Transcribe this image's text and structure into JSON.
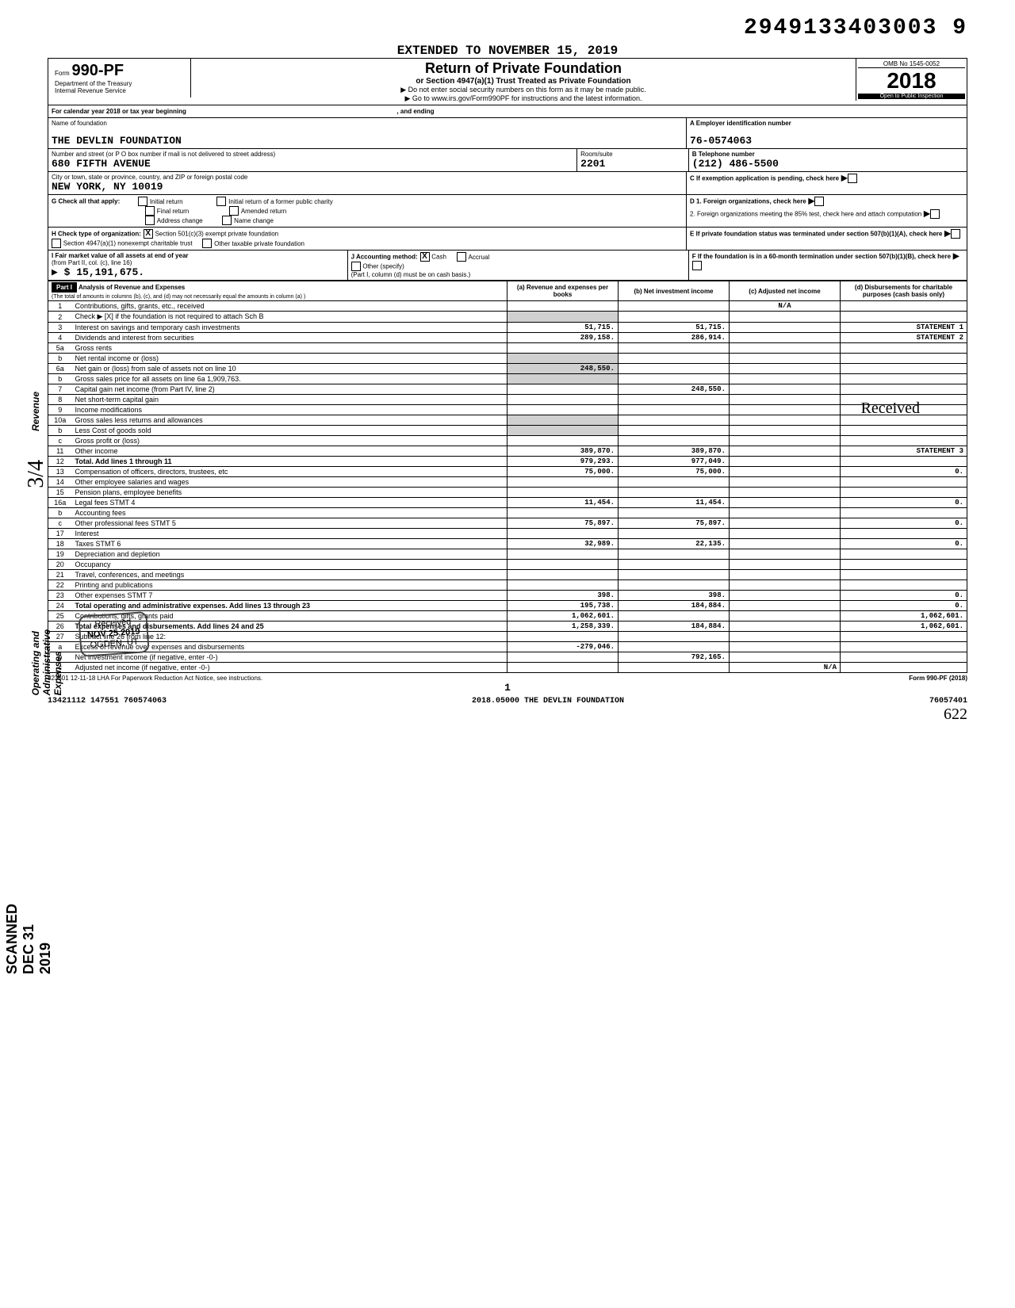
{
  "top_number": "2949133403003 9",
  "extended": "EXTENDED TO NOVEMBER 15, 2019",
  "form": {
    "prefix": "Form",
    "number": "990-PF",
    "dept1": "Department of the Treasury",
    "dept2": "Internal Revenue Service"
  },
  "title": {
    "main": "Return of Private Foundation",
    "sub": "or Section 4947(a)(1) Trust Treated as Private Foundation",
    "note1": "▶ Do not enter social security numbers on this form as it may be made public.",
    "note2": "▶ Go to www.irs.gov/Form990PF for instructions and the latest information."
  },
  "yearbox": {
    "omb": "OMB No  1545-0052",
    "year": "2018",
    "open": "Open to Public Inspection"
  },
  "cal_line": {
    "prefix": "For calendar year 2018 or tax year beginning",
    "mid": ", and ending"
  },
  "header": {
    "name_label": "Name of foundation",
    "name": "THE DEVLIN FOUNDATION",
    "addr_label": "Number and street (or P O  box number if mail is not delivered to street address)",
    "addr": "680 FIFTH AVENUE",
    "room_label": "Room/suite",
    "room": "2201",
    "city_label": "City or town, state or province, country, and ZIP or foreign postal code",
    "city": "NEW YORK, NY   10019",
    "ein_label": "A  Employer identification number",
    "ein": "76-0574063",
    "tel_label": "B  Telephone number",
    "tel": "(212) 486-5500",
    "c_label": "C  If exemption application is pending, check here",
    "g_label": "G   Check all that apply:",
    "g_opts": [
      "Initial return",
      "Final return",
      "Address change",
      "Initial return of a former public charity",
      "Amended return",
      "Name change"
    ],
    "d1": "D  1. Foreign organizations, check here",
    "d2": "2. Foreign organizations meeting the 85% test, check here and attach computation",
    "h_label": "H   Check type of organization:",
    "h1": "Section 501(c)(3) exempt private foundation",
    "h2": "Section 4947(a)(1) nonexempt charitable trust",
    "h3": "Other taxable private foundation",
    "e_label": "E  If private foundation status was terminated under section 507(b)(1)(A), check here",
    "i_label": "I   Fair market value of all assets at end of year",
    "i_sub": "(from Part II, col. (c), line 16)",
    "i_val": "▶ $              15,191,675.",
    "j_label": "J   Accounting method:",
    "j_cash": "Cash",
    "j_accrual": "Accrual",
    "j_other": "Other (specify)",
    "j_note": "(Part I, column (d) must be on cash basis.)",
    "f_label": "F  If the foundation is in a 60-month termination under section 507(b)(1)(B), check here"
  },
  "partI": {
    "label": "Part I",
    "title": "Analysis of Revenue and Expenses",
    "subtitle": "(The total of amounts in columns (b), (c), and (d) may not necessarily equal the amounts in column (a) )",
    "cols": [
      "(a) Revenue and expenses per books",
      "(b) Net investment income",
      "(c) Adjusted net income",
      "(d) Disbursements for charitable purposes (cash basis only)"
    ],
    "na": "N/A"
  },
  "revenue_label": "Revenue",
  "expenses_label": "Operating and Administrative Expenses",
  "rows": [
    {
      "n": "1",
      "d": "Contributions, gifts, grants, etc., received",
      "a": "",
      "b": "",
      "c": "",
      "e": ""
    },
    {
      "n": "2",
      "d": "Check ▶ [X]  if the foundation is not required to attach Sch  B",
      "a": "",
      "b": "",
      "c": "",
      "e": ""
    },
    {
      "n": "3",
      "d": "Interest on savings and temporary cash investments",
      "a": "51,715.",
      "b": "51,715.",
      "c": "",
      "e": "STATEMENT  1"
    },
    {
      "n": "4",
      "d": "Dividends and interest from securities",
      "a": "289,158.",
      "b": "286,914.",
      "c": "",
      "e": "STATEMENT  2"
    },
    {
      "n": "5a",
      "d": "Gross rents",
      "a": "",
      "b": "",
      "c": "",
      "e": ""
    },
    {
      "n": "b",
      "d": "Net rental income or (loss)",
      "a": "",
      "b": "",
      "c": "",
      "e": ""
    },
    {
      "n": "6a",
      "d": "Net gain or (loss) from sale of assets not on line 10",
      "a": "248,550.",
      "b": "",
      "c": "",
      "e": ""
    },
    {
      "n": "b",
      "d": "Gross sales price for all assets on line 6a      1,909,763.",
      "a": "",
      "b": "",
      "c": "",
      "e": ""
    },
    {
      "n": "7",
      "d": "Capital gain net income (from Part IV, line 2)",
      "a": "",
      "b": "248,550.",
      "c": "",
      "e": ""
    },
    {
      "n": "8",
      "d": "Net short-term capital gain",
      "a": "",
      "b": "",
      "c": "",
      "e": ""
    },
    {
      "n": "9",
      "d": "Income modifications",
      "a": "",
      "b": "",
      "c": "",
      "e": ""
    },
    {
      "n": "10a",
      "d": "Gross sales less returns and allowances",
      "a": "",
      "b": "",
      "c": "",
      "e": ""
    },
    {
      "n": "b",
      "d": "Less  Cost of goods sold",
      "a": "",
      "b": "",
      "c": "",
      "e": ""
    },
    {
      "n": "c",
      "d": "Gross profit or (loss)",
      "a": "",
      "b": "",
      "c": "",
      "e": ""
    },
    {
      "n": "11",
      "d": "Other income",
      "a": "389,870.",
      "b": "389,870.",
      "c": "",
      "e": "STATEMENT  3"
    },
    {
      "n": "12",
      "d": "Total. Add lines 1 through 11",
      "a": "979,293.",
      "b": "977,049.",
      "c": "",
      "e": ""
    },
    {
      "n": "13",
      "d": "Compensation of officers, directors, trustees, etc",
      "a": "75,000.",
      "b": "75,000.",
      "c": "",
      "e": "0."
    },
    {
      "n": "14",
      "d": "Other employee salaries and wages",
      "a": "",
      "b": "",
      "c": "",
      "e": ""
    },
    {
      "n": "15",
      "d": "Pension plans, employee benefits",
      "a": "",
      "b": "",
      "c": "",
      "e": ""
    },
    {
      "n": "16a",
      "d": "Legal fees                           STMT  4",
      "a": "11,454.",
      "b": "11,454.",
      "c": "",
      "e": "0."
    },
    {
      "n": "b",
      "d": "Accounting fees",
      "a": "",
      "b": "",
      "c": "",
      "e": ""
    },
    {
      "n": "c",
      "d": "Other professional fees          STMT  5",
      "a": "75,897.",
      "b": "75,897.",
      "c": "",
      "e": "0."
    },
    {
      "n": "17",
      "d": "Interest",
      "a": "",
      "b": "",
      "c": "",
      "e": ""
    },
    {
      "n": "18",
      "d": "Taxes                                 STMT  6",
      "a": "32,989.",
      "b": "22,135.",
      "c": "",
      "e": "0."
    },
    {
      "n": "19",
      "d": "Depreciation and depletion",
      "a": "",
      "b": "",
      "c": "",
      "e": ""
    },
    {
      "n": "20",
      "d": "Occupancy",
      "a": "",
      "b": "",
      "c": "",
      "e": ""
    },
    {
      "n": "21",
      "d": "Travel, conferences, and meetings",
      "a": "",
      "b": "",
      "c": "",
      "e": ""
    },
    {
      "n": "22",
      "d": "Printing and publications",
      "a": "",
      "b": "",
      "c": "",
      "e": ""
    },
    {
      "n": "23",
      "d": "Other expenses                     STMT  7",
      "a": "398.",
      "b": "398.",
      "c": "",
      "e": "0."
    },
    {
      "n": "24",
      "d": "Total operating and administrative expenses. Add lines 13 through 23",
      "a": "195,738.",
      "b": "184,884.",
      "c": "",
      "e": "0."
    },
    {
      "n": "25",
      "d": "Contributions, gifts, grants paid",
      "a": "1,062,601.",
      "b": "",
      "c": "",
      "e": "1,062,601."
    },
    {
      "n": "26",
      "d": "Total expenses and disbursements. Add lines 24 and 25",
      "a": "1,258,339.",
      "b": "184,884.",
      "c": "",
      "e": "1,062,601."
    },
    {
      "n": "27",
      "d": "Subtract line 26 from line 12:",
      "a": "",
      "b": "",
      "c": "",
      "e": ""
    },
    {
      "n": "a",
      "d": "Excess of revenue over expenses and disbursements",
      "a": "-279,046.",
      "b": "",
      "c": "",
      "e": ""
    },
    {
      "n": "b",
      "d": "Net investment income (if negative, enter -0-)",
      "a": "",
      "b": "792,165.",
      "c": "",
      "e": ""
    },
    {
      "n": "c",
      "d": "Adjusted net income (if negative, enter -0-)",
      "a": "",
      "b": "",
      "c": "N/A",
      "e": ""
    }
  ],
  "received_stamp": {
    "line1": "Received",
    "line2": "NOV 25 2019",
    "line3": "OGDEN, UT"
  },
  "cursive_received": "Received",
  "footer": {
    "lha": "823501  12-11-18   LHA   For Paperwork Reduction Act Notice, see instructions.",
    "form": "Form 990-PF (2018)",
    "page": "1",
    "line2_left": "13421112 147551 760574063",
    "line2_mid": "2018.05000 THE DEVLIN FOUNDATION",
    "line2_right": "76057401",
    "line3": "622"
  },
  "side_stamp": "SCANNED DEC 31 2019",
  "side_34": "3/4"
}
